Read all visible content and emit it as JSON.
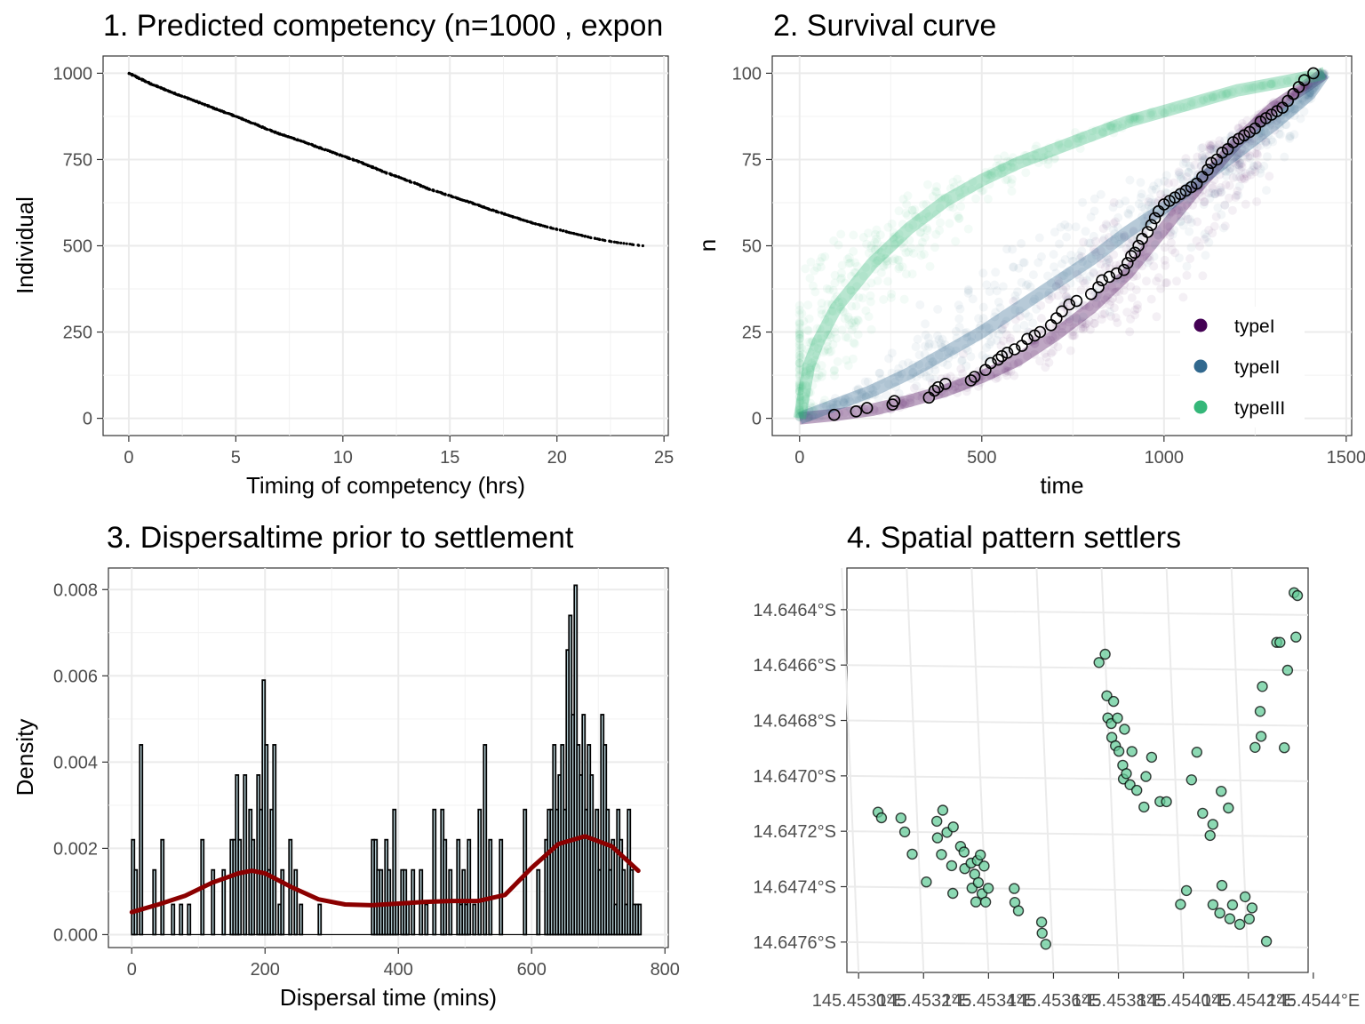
{
  "chart_data": [
    {
      "type": "scatter",
      "title": "1. Predicted competency (n=1000 , expon",
      "xlabel": "Timing of competency (hrs)",
      "ylabel": "Individual",
      "xlim": [
        -1.2,
        25.2
      ],
      "ylim": [
        -50,
        1050
      ],
      "xticks": [
        0,
        5,
        10,
        15,
        20,
        25
      ],
      "yticks": [
        0,
        250,
        500,
        750,
        1000
      ],
      "grid": true,
      "point_color": "#000000",
      "curve": {
        "x": [
          0,
          1,
          2,
          3,
          4,
          5,
          6,
          7,
          8,
          9,
          10,
          11,
          12,
          13,
          14,
          15,
          16,
          17,
          18,
          19,
          20,
          21,
          22,
          23,
          24
        ],
        "y": [
          1000,
          970,
          945,
          922,
          898,
          875,
          850,
          825,
          805,
          782,
          760,
          738,
          712,
          690,
          665,
          645,
          625,
          603,
          583,
          563,
          548,
          532,
          518,
          508,
          500
        ]
      }
    },
    {
      "type": "scatter",
      "title": "2. Survival curve",
      "xlabel": "time",
      "ylabel": "n",
      "xlim": [
        -75,
        1515
      ],
      "ylim": [
        -5,
        105
      ],
      "xticks": [
        0,
        500,
        1000,
        1500
      ],
      "yticks": [
        0,
        25,
        50,
        75,
        100
      ],
      "grid": true,
      "legend_position": "bottom-right",
      "series": [
        {
          "name": "typeI",
          "color": "#440154",
          "x": [
            0,
            100,
            200,
            300,
            400,
            500,
            600,
            700,
            800,
            900,
            1000,
            1100,
            1200,
            1300,
            1400,
            1440
          ],
          "y": [
            0,
            1,
            2.5,
            5,
            8,
            12,
            17,
            24,
            32,
            42,
            55,
            68,
            80,
            90,
            97,
            100
          ]
        },
        {
          "name": "typeII",
          "color": "#31688e",
          "x": [
            0,
            100,
            200,
            300,
            400,
            500,
            600,
            700,
            800,
            900,
            1000,
            1100,
            1200,
            1300,
            1400,
            1440
          ],
          "y": [
            0,
            4,
            8,
            13,
            19,
            25,
            32,
            39,
            46,
            54,
            61,
            69,
            77,
            85,
            94,
            100
          ]
        },
        {
          "name": "typeIII",
          "color": "#35b779",
          "x": [
            0,
            25,
            50,
            100,
            200,
            300,
            400,
            500,
            600,
            700,
            800,
            900,
            1000,
            1100,
            1200,
            1300,
            1400,
            1440
          ],
          "y": [
            0,
            15,
            22,
            32,
            45,
            55,
            63,
            69,
            74,
            78,
            82,
            86,
            89,
            92,
            95,
            97,
            99,
            100
          ]
        }
      ],
      "observed": {
        "x": [
          95,
          155,
          185,
          255,
          260,
          355,
          370,
          380,
          400,
          470,
          480,
          510,
          525,
          545,
          555,
          570,
          590,
          610,
          625,
          645,
          660,
          690,
          705,
          720,
          740,
          760,
          800,
          820,
          830,
          850,
          870,
          890,
          900,
          910,
          920,
          930,
          940,
          955,
          965,
          975,
          985,
          1000,
          1015,
          1030,
          1045,
          1060,
          1075,
          1090,
          1105,
          1120,
          1130,
          1145,
          1160,
          1175,
          1190,
          1205,
          1220,
          1235,
          1250,
          1265,
          1280,
          1295,
          1310,
          1325,
          1340,
          1355,
          1370,
          1385,
          1410
        ],
        "y": [
          1,
          2,
          3,
          4,
          5,
          6,
          8,
          9,
          10,
          11,
          12,
          14,
          16,
          17,
          18,
          19,
          20,
          21,
          23,
          24,
          25,
          27,
          29,
          31,
          33,
          34,
          36,
          38,
          40,
          41,
          42,
          43,
          45,
          47,
          48,
          50,
          52,
          54,
          56,
          58,
          60,
          62,
          63,
          64,
          65,
          66,
          67,
          68,
          70,
          72,
          74,
          75,
          77,
          78,
          80,
          81,
          82,
          83,
          84,
          86,
          87,
          88,
          89,
          90,
          92,
          94,
          96,
          98,
          100
        ]
      }
    },
    {
      "type": "bar",
      "title": "3. Dispersaltime prior to settlement",
      "xlabel": "Dispersal time (mins)",
      "ylabel": "Density",
      "xlim": [
        -35,
        805
      ],
      "ylim": [
        -0.0003,
        0.0085
      ],
      "xticks": [
        0,
        200,
        400,
        600,
        800
      ],
      "ytick_labels": [
        "0.000",
        "0.002",
        "0.004",
        "0.006",
        "0.008"
      ],
      "yticks": [
        0,
        0.002,
        0.004,
        0.006,
        0.008
      ],
      "grid": true,
      "bar_color": "#d0eef5",
      "bin_width": 4,
      "bins_x": [
        0,
        4,
        12,
        32,
        44,
        60,
        72,
        84,
        104,
        120,
        136,
        148,
        152,
        156,
        160,
        168,
        176,
        180,
        188,
        192,
        196,
        200,
        204,
        208,
        212,
        220,
        224,
        236,
        244,
        252,
        280,
        360,
        364,
        368,
        372,
        376,
        380,
        384,
        388,
        392,
        396,
        404,
        408,
        412,
        420,
        432,
        440,
        452,
        464,
        468,
        476,
        488,
        492,
        496,
        500,
        504,
        512,
        520,
        528,
        536,
        552,
        588,
        608,
        620,
        624,
        628,
        632,
        636,
        640,
        644,
        648,
        652,
        656,
        660,
        664,
        668,
        672,
        676,
        680,
        684,
        688,
        692,
        696,
        700,
        704,
        708,
        712,
        716,
        720,
        724,
        728,
        732,
        736,
        740,
        744,
        748,
        752,
        756,
        760
      ],
      "bins_density": [
        0.0022,
        0.0015,
        0.0044,
        0.0015,
        0.0022,
        0.0007,
        0.0007,
        0.0007,
        0.0022,
        0.0015,
        0.0015,
        0.0022,
        0.0022,
        0.0037,
        0.0022,
        0.0037,
        0.0029,
        0.0022,
        0.0037,
        0.0029,
        0.0059,
        0.0044,
        0.0015,
        0.0029,
        0.0044,
        0.0007,
        0.0015,
        0.0022,
        0.0015,
        0.0007,
        0.0007,
        0.0022,
        0.0022,
        0.0015,
        0.0015,
        0.0007,
        0.0022,
        0.0015,
        0.0007,
        0.0029,
        0.0007,
        0.0015,
        0.0015,
        0.0007,
        0.0015,
        0.0015,
        0.0007,
        0.0029,
        0.0029,
        0.0022,
        0.0015,
        0.0022,
        0.0007,
        0.0015,
        0.0007,
        0.0022,
        0.0007,
        0.0029,
        0.0044,
        0.0022,
        0.0022,
        0.0029,
        0.0015,
        0.0022,
        0.0029,
        0.0029,
        0.0044,
        0.0029,
        0.0037,
        0.0044,
        0.0029,
        0.0066,
        0.0074,
        0.0051,
        0.0081,
        0.0044,
        0.0037,
        0.0051,
        0.0029,
        0.0044,
        0.0037,
        0.0022,
        0.0029,
        0.0015,
        0.0051,
        0.0044,
        0.0029,
        0.0015,
        0.0022,
        0.0007,
        0.0029,
        0.0022,
        0.0015,
        0.0007,
        0.0029,
        0.0015,
        0.0007,
        0.0007,
        0.0007
      ],
      "density_curve": {
        "color": "#8b0000",
        "x": [
          0,
          40,
          80,
          120,
          160,
          180,
          200,
          240,
          280,
          320,
          360,
          400,
          440,
          480,
          520,
          560,
          600,
          640,
          680,
          720,
          760
        ],
        "y": [
          0.00052,
          0.0007,
          0.0009,
          0.0012,
          0.00142,
          0.00148,
          0.00142,
          0.0011,
          0.00082,
          0.0007,
          0.00068,
          0.00072,
          0.00076,
          0.00078,
          0.00078,
          0.00092,
          0.00155,
          0.0021,
          0.00228,
          0.00205,
          0.00148
        ]
      }
    },
    {
      "type": "scatter",
      "title": "4. Spatial pattern settlers",
      "xlabel": "",
      "ylabel": "",
      "xlim": [
        145.45299,
        145.45441
      ],
      "ylim": [
        -14.6477,
        -14.64624
      ],
      "xticks": [
        145.453,
        145.4532,
        145.4534,
        145.4536,
        145.4538,
        145.454,
        145.4542,
        145.4544
      ],
      "xtick_labels": [
        "145.4530°E",
        "145.4532°E",
        "145.4534°E",
        "145.4536°E",
        "145.4538°E",
        "145.4540°E",
        "145.4542°E",
        "145.4544°E"
      ],
      "yticks": [
        -14.6464,
        -14.6466,
        -14.6468,
        -14.647,
        -14.6472,
        -14.6474,
        -14.6476
      ],
      "ytick_labels": [
        "14.6464°S",
        "14.6466°S",
        "14.6468°S",
        "14.6470°S",
        "14.6472°S",
        "14.6474°S",
        "14.6476°S"
      ],
      "grid": true,
      "point_color": "#66cc99",
      "lon": [
        145.45308,
        145.45309,
        145.45315,
        145.45316,
        145.45318,
        145.45322,
        145.45326,
        145.45326,
        145.45327,
        145.45328,
        145.45329,
        145.4533,
        145.4533,
        145.45331,
        145.45333,
        145.45334,
        145.45334,
        145.45336,
        145.45336,
        145.45337,
        145.45337,
        145.45338,
        145.45338,
        145.45339,
        145.45339,
        145.4534,
        145.4534,
        145.45341,
        145.45349,
        145.45349,
        145.4535,
        145.45357,
        145.45357,
        145.45358,
        145.45378,
        145.4538,
        145.4538,
        145.4538,
        145.45381,
        145.45381,
        145.45382,
        145.45382,
        145.45383,
        145.45383,
        145.45384,
        145.45384,
        145.45385,
        145.45385,
        145.45386,
        145.45387,
        145.45388,
        145.4539,
        145.45391,
        145.45393,
        145.45395,
        145.45397,
        145.454,
        145.45402,
        145.45405,
        145.45407,
        145.45408,
        145.4541,
        145.4541,
        145.45411,
        145.45412,
        145.45413,
        145.45414,
        145.45415,
        145.45416,
        145.45416,
        145.45418,
        145.4542,
        145.45421,
        145.45422,
        145.45425,
        145.45426,
        145.45427,
        145.45427,
        145.45428,
        145.45433,
        145.45434,
        145.45434,
        145.45436,
        145.45439,
        145.45439,
        145.4544
      ],
      "lat": [
        -14.64713,
        -14.64715,
        -14.64715,
        -14.6472,
        -14.64728,
        -14.64738,
        -14.64716,
        -14.64722,
        -14.64728,
        -14.64712,
        -14.6472,
        -14.64732,
        -14.64742,
        -14.64718,
        -14.64725,
        -14.64733,
        -14.64727,
        -14.6474,
        -14.64731,
        -14.64735,
        -14.64745,
        -14.6473,
        -14.64738,
        -14.64742,
        -14.64728,
        -14.64732,
        -14.64745,
        -14.6474,
        -14.64745,
        -14.6474,
        -14.64748,
        -14.64752,
        -14.64756,
        -14.6476,
        -14.64658,
        -14.64655,
        -14.6467,
        -14.64678,
        -14.6468,
        -14.64685,
        -14.64672,
        -14.64688,
        -14.64678,
        -14.6469,
        -14.647,
        -14.64695,
        -14.64682,
        -14.64698,
        -14.64702,
        -14.6469,
        -14.64704,
        -14.6471,
        -14.64699,
        -14.64692,
        -14.64708,
        -14.64708,
        -14.64745,
        -14.6474,
        -14.647,
        -14.6469,
        -14.64712,
        -14.6472,
        -14.64745,
        -14.64716,
        -14.64748,
        -14.64738,
        -14.64704,
        -14.6475,
        -14.64745,
        -14.6471,
        -14.64752,
        -14.64742,
        -14.6475,
        -14.64746,
        -14.64688,
        -14.64758,
        -14.64684,
        -14.64675,
        -14.64666,
        -14.6465,
        -14.64688,
        -14.6465,
        -14.6466,
        -14.64648,
        -14.64632,
        -14.64633
      ]
    }
  ]
}
